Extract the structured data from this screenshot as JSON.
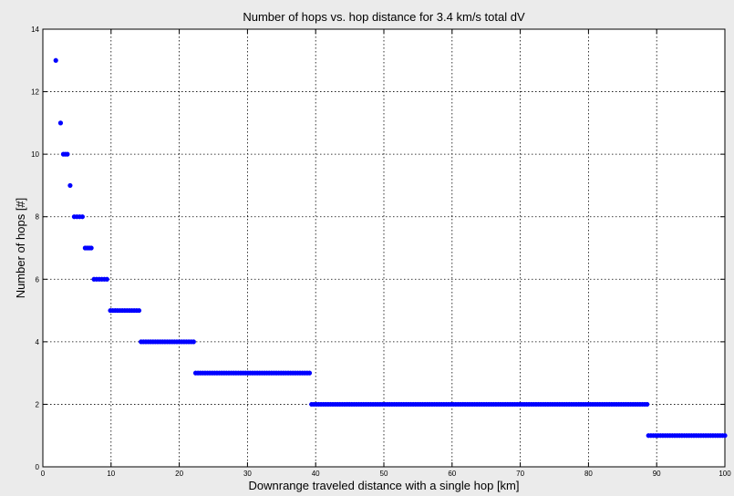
{
  "chart_data": {
    "type": "scatter",
    "title": "Number of hops vs. hop distance for 3.4 km/s total dV",
    "xlabel": "Downrange traveled distance with a single hop [km]",
    "ylabel": "Number of hops [#]",
    "xlim": [
      0,
      100
    ],
    "ylim": [
      0,
      14
    ],
    "xticks": [
      0,
      10,
      20,
      30,
      40,
      50,
      60,
      70,
      80,
      90,
      100
    ],
    "yticks": [
      0,
      2,
      4,
      6,
      8,
      10,
      12,
      14
    ],
    "grid": "dotted",
    "legend": "none",
    "series": [
      {
        "color": "#0000ff",
        "marker": "dot",
        "segments": [
          {
            "y": 13,
            "x_start": 1.9,
            "x_end": 1.9
          },
          {
            "y": 11,
            "x_start": 2.6,
            "x_end": 2.6
          },
          {
            "y": 10,
            "x_start": 3.0,
            "x_end": 3.6
          },
          {
            "y": 9,
            "x_start": 4.0,
            "x_end": 4.0
          },
          {
            "y": 8,
            "x_start": 4.6,
            "x_end": 5.8
          },
          {
            "y": 7,
            "x_start": 6.2,
            "x_end": 7.1
          },
          {
            "y": 6,
            "x_start": 7.5,
            "x_end": 9.4
          },
          {
            "y": 5,
            "x_start": 9.9,
            "x_end": 14.1
          },
          {
            "y": 4,
            "x_start": 14.4,
            "x_end": 22.1
          },
          {
            "y": 3,
            "x_start": 22.4,
            "x_end": 39.1
          },
          {
            "y": 2,
            "x_start": 39.4,
            "x_end": 88.6
          },
          {
            "y": 1,
            "x_start": 88.8,
            "x_end": 100.0
          }
        ]
      }
    ]
  }
}
